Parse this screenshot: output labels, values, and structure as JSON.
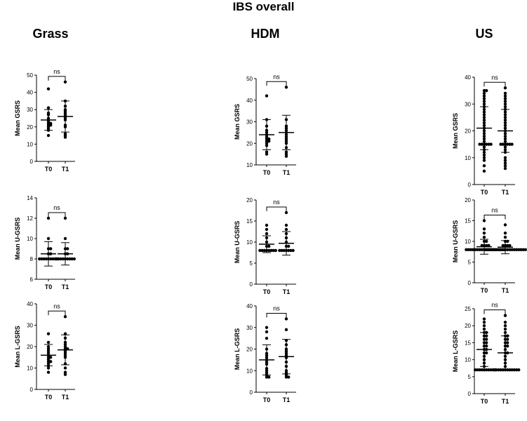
{
  "title": "IBS overall",
  "columns": [
    "Grass",
    "HDM",
    "US"
  ],
  "chart_data": [
    {
      "type": "scatter",
      "group": "Grass",
      "ylabel": "Mean GSRS",
      "categories": [
        "T0",
        "T1"
      ],
      "ylim": [
        0,
        50
      ],
      "yticks": [
        0,
        10,
        20,
        30,
        40,
        50
      ],
      "annotation": "ns",
      "series": [
        {
          "values": [
            42,
            31,
            28,
            27,
            25,
            24,
            23,
            22,
            22,
            21,
            21,
            20,
            19,
            18,
            15
          ],
          "mean": 24,
          "sd": 6
        },
        {
          "values": [
            46,
            35,
            32,
            30,
            29,
            28,
            27,
            26,
            25,
            24,
            21,
            20,
            16,
            15,
            14
          ],
          "mean": 26,
          "sd": 9
        }
      ]
    },
    {
      "type": "scatter",
      "group": "HDM",
      "ylabel": "Mean GSRS",
      "categories": [
        "T0",
        "T1"
      ],
      "ylim": [
        10,
        50
      ],
      "yticks": [
        10,
        20,
        30,
        40,
        50
      ],
      "annotation": "ns",
      "series": [
        {
          "values": [
            42,
            31,
            28,
            26,
            25,
            24,
            23,
            22,
            22,
            21,
            21,
            20,
            19,
            16,
            15
          ],
          "mean": 24,
          "sd": 7
        },
        {
          "values": [
            46,
            31,
            28,
            27,
            26,
            25,
            24,
            23,
            22,
            21,
            20,
            18,
            16,
            15,
            14
          ],
          "mean": 25,
          "sd": 8
        }
      ]
    },
    {
      "type": "scatter",
      "group": "US",
      "ylabel": "Mean GSRS",
      "categories": [
        "T0",
        "T1"
      ],
      "ylim": [
        0,
        40
      ],
      "yticks": [
        0,
        10,
        20,
        30,
        40
      ],
      "annotation": "ns",
      "series": [
        {
          "values": [
            35,
            35,
            34,
            33,
            32,
            31,
            30,
            29,
            28,
            27,
            26,
            25,
            24,
            23,
            22,
            21,
            20,
            19,
            18,
            17,
            16,
            15,
            15,
            15,
            15,
            15,
            15,
            14,
            13,
            12,
            11,
            10,
            9,
            7,
            5
          ],
          "mean": 21,
          "sd": 8
        },
        {
          "values": [
            36,
            34,
            33,
            32,
            31,
            30,
            29,
            28,
            27,
            26,
            25,
            24,
            23,
            22,
            21,
            20,
            19,
            18,
            17,
            16,
            15,
            15,
            15,
            15,
            15,
            15,
            14,
            13,
            12,
            10,
            9,
            8,
            7,
            6
          ],
          "mean": 20,
          "sd": 8
        }
      ]
    },
    {
      "type": "scatter",
      "group": "Grass",
      "ylabel": "Mean U-GSRS",
      "categories": [
        "T0",
        "T1"
      ],
      "ylim": [
        6,
        14
      ],
      "yticks": [
        6,
        8,
        10,
        12,
        14
      ],
      "annotation": "ns",
      "series": [
        {
          "values": [
            12,
            10,
            9,
            9,
            8.5,
            8.5,
            8,
            8,
            8,
            8,
            8,
            8,
            8,
            8,
            8
          ],
          "mean": 8.5,
          "sd": 1.2
        },
        {
          "values": [
            12,
            10,
            9,
            9,
            8.5,
            8.5,
            8,
            8,
            8,
            8,
            8,
            8,
            8,
            8,
            8
          ],
          "mean": 8.5,
          "sd": 1.1
        }
      ]
    },
    {
      "type": "scatter",
      "group": "HDM",
      "ylabel": "Mean U-GSRS",
      "categories": [
        "T0",
        "T1"
      ],
      "ylim": [
        0,
        20
      ],
      "yticks": [
        0,
        5,
        10,
        15,
        20
      ],
      "annotation": "ns",
      "series": [
        {
          "values": [
            14,
            13,
            12,
            11,
            10,
            9,
            9,
            8,
            8,
            8,
            8,
            8,
            8,
            8,
            8
          ],
          "mean": 9.5,
          "sd": 2
        },
        {
          "values": [
            17,
            14,
            13,
            12,
            11,
            10,
            9,
            9,
            8,
            8,
            8,
            8,
            8,
            8,
            8
          ],
          "mean": 9.7,
          "sd": 2.8
        }
      ]
    },
    {
      "type": "scatter",
      "group": "US",
      "ylabel": "Mean U-GSRS",
      "categories": [
        "T0",
        "T1"
      ],
      "ylim": [
        0,
        20
      ],
      "yticks": [
        0,
        5,
        10,
        15,
        20
      ],
      "annotation": "ns",
      "series": [
        {
          "values": [
            15,
            13,
            12,
            11,
            10,
            10,
            9,
            9,
            9,
            9,
            8,
            8,
            8,
            8,
            8,
            8,
            8,
            8,
            8,
            8,
            8,
            8,
            8,
            8,
            8,
            8,
            8,
            8
          ],
          "mean": 8.7,
          "sd": 1.8
        },
        {
          "values": [
            14,
            12,
            11,
            10,
            10,
            9,
            9,
            9,
            9,
            8,
            8,
            8,
            8,
            8,
            8,
            8,
            8,
            8,
            8,
            8,
            8,
            8,
            8,
            8,
            8,
            8,
            8,
            8
          ],
          "mean": 8.6,
          "sd": 1.6
        }
      ]
    },
    {
      "type": "scatter",
      "group": "Grass",
      "ylabel": "Mean L-GSRS",
      "categories": [
        "T0",
        "T1"
      ],
      "ylim": [
        0,
        40
      ],
      "yticks": [
        0,
        10,
        20,
        30,
        40
      ],
      "annotation": "ns",
      "series": [
        {
          "values": [
            26,
            22,
            20,
            19,
            18,
            17,
            16,
            15,
            15,
            14,
            13,
            13,
            12,
            11,
            10,
            8
          ],
          "mean": 16,
          "sd": 5
        },
        {
          "values": [
            34,
            26,
            24,
            22,
            21,
            20,
            19,
            19,
            18,
            17,
            16,
            15,
            12,
            10,
            8,
            7
          ],
          "mean": 18.5,
          "sd": 7
        }
      ]
    },
    {
      "type": "scatter",
      "group": "HDM",
      "ylabel": "Mean L-GSRS",
      "categories": [
        "T0",
        "T1"
      ],
      "ylim": [
        0,
        40
      ],
      "yticks": [
        0,
        10,
        20,
        30,
        40
      ],
      "annotation": "ns",
      "series": [
        {
          "values": [
            30,
            28,
            25,
            20,
            18,
            17,
            16,
            15,
            14,
            13,
            11,
            10,
            9,
            8,
            7,
            7
          ],
          "mean": 15,
          "sd": 7
        },
        {
          "values": [
            34,
            29,
            24,
            22,
            20,
            19,
            18,
            17,
            16,
            14,
            12,
            10,
            9,
            8,
            7,
            7
          ],
          "mean": 16.5,
          "sd": 8
        }
      ]
    },
    {
      "type": "scatter",
      "group": "US",
      "ylabel": "Mean L-GSRS",
      "categories": [
        "T0",
        "T1"
      ],
      "ylim": [
        0,
        25
      ],
      "yticks": [
        0,
        5,
        10,
        15,
        20,
        25
      ],
      "annotation": "ns",
      "series": [
        {
          "values": [
            22,
            21,
            20,
            19,
            18,
            18,
            17,
            17,
            16,
            16,
            15,
            15,
            14,
            14,
            13,
            13,
            12,
            12,
            11,
            10,
            9,
            8,
            7,
            7,
            7,
            7,
            7,
            7,
            7,
            7,
            7,
            7
          ],
          "mean": 13,
          "sd": 5
        },
        {
          "values": [
            23,
            21,
            20,
            19,
            18,
            17,
            17,
            16,
            16,
            15,
            15,
            14,
            14,
            13,
            12,
            12,
            11,
            10,
            9,
            8,
            7,
            7,
            7,
            7,
            7,
            7,
            7,
            7,
            7,
            7,
            7,
            7
          ],
          "mean": 12,
          "sd": 5
        }
      ]
    }
  ]
}
